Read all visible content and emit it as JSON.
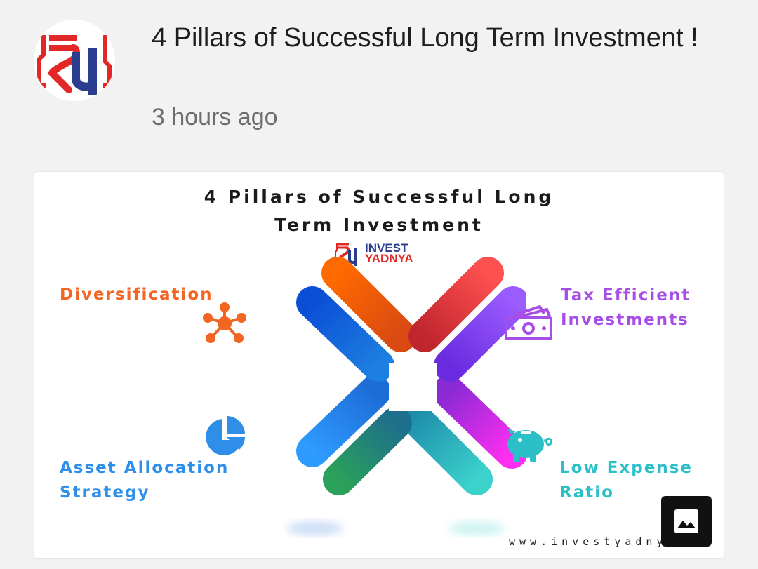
{
  "post": {
    "title": "4 Pillars of Successful Long Term Investment !",
    "time": "3 hours ago"
  },
  "infographic": {
    "title_line1": "4 Pillars of Successful Long",
    "title_line2": "Term Investment",
    "brand_line1": "INVEST",
    "brand_line2": "YADNYA",
    "website": "www.investyadny",
    "pillars": [
      {
        "line1": "Diversification",
        "line2": "",
        "color": "#f26522",
        "icon": "network-icon"
      },
      {
        "line1": "Tax Efficient",
        "line2": "Investments",
        "color": "#a64ee6",
        "icon": "money-icon"
      },
      {
        "line1": "Asset Allocation",
        "line2": "Strategy",
        "color": "#2f8fe8",
        "icon": "pie-chart-icon"
      },
      {
        "line1": "Low Expense",
        "line2": "Ratio",
        "color": "#2bbfc8",
        "icon": "piggy-bank-icon"
      }
    ]
  },
  "colors": {
    "brand_red": "#e32726",
    "brand_blue": "#2a3d8f",
    "orange": "#f26522",
    "purple": "#a64ee6",
    "blue": "#2f8fe8",
    "teal": "#2bbfc8"
  }
}
